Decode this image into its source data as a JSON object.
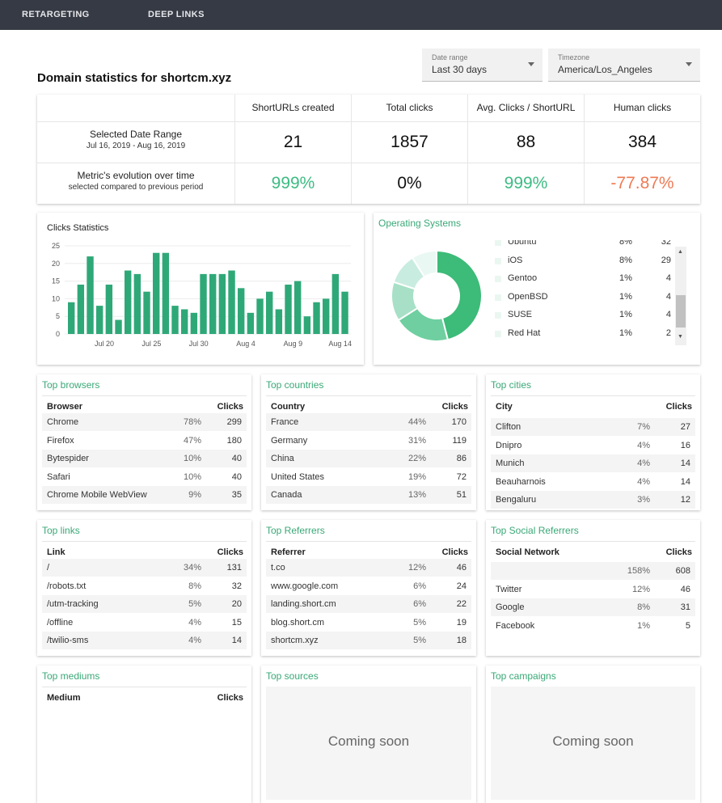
{
  "nav": {
    "retargeting": "RETARGETING",
    "deep_links": "DEEP LINKS"
  },
  "page_title": "Domain statistics for shortcm.xyz",
  "date_range": {
    "label": "Date range",
    "value": "Last 30 days"
  },
  "timezone": {
    "label": "Timezone",
    "value": "America/Los_Angeles"
  },
  "stats": {
    "headers": [
      "ShortURLs created",
      "Total clicks",
      "Avg. Clicks / ShortURL",
      "Human clicks"
    ],
    "selected_label": "Selected Date Range",
    "selected_dates": "Jul 16, 2019 - Aug 16, 2019",
    "values": [
      "21",
      "1857",
      "88",
      "384"
    ],
    "evolution_label": "Metric's evolution over time",
    "evolution_sub": "selected compared to previous period",
    "changes": [
      "999%",
      "0%",
      "999%",
      "-77.87%"
    ]
  },
  "clicks_chart": {
    "title": "Clicks Statistics",
    "chart_data": {
      "type": "bar",
      "ylim": [
        0,
        25
      ],
      "yticks": [
        "0",
        "5",
        "10",
        "15",
        "20",
        "25"
      ],
      "xticks": [
        "Jul 20",
        "Jul 25",
        "Jul 30",
        "Aug 4",
        "Aug 9",
        "Aug 14"
      ],
      "values": [
        9,
        14,
        22,
        8,
        14,
        4,
        18,
        17,
        12,
        23,
        23,
        8,
        7,
        6,
        17,
        17,
        17,
        18,
        13,
        6,
        10,
        12,
        7,
        14,
        15,
        5,
        9,
        10,
        17,
        12
      ],
      "color": "#2fa878"
    }
  },
  "os": {
    "title": "Operating Systems",
    "chart_data": {
      "type": "pie",
      "colors": [
        "#3dbb78",
        "#6fcfa0",
        "#a7e0c6",
        "#c9ece0",
        "#e9f8f2"
      ],
      "values": [
        46,
        20,
        14,
        11,
        9
      ]
    },
    "rows": [
      {
        "name": "Ubuntu",
        "pct": "8%",
        "count": "32"
      },
      {
        "name": "iOS",
        "pct": "8%",
        "count": "29"
      },
      {
        "name": "Gentoo",
        "pct": "1%",
        "count": "4"
      },
      {
        "name": "OpenBSD",
        "pct": "1%",
        "count": "4"
      },
      {
        "name": "SUSE",
        "pct": "1%",
        "count": "4"
      },
      {
        "name": "Red Hat",
        "pct": "1%",
        "count": "2"
      }
    ]
  },
  "browsers": {
    "title": "Top browsers",
    "col1": "Browser",
    "col2": "Clicks",
    "rows": [
      [
        "Chrome",
        "78%",
        "299"
      ],
      [
        "Firefox",
        "47%",
        "180"
      ],
      [
        "Bytespider",
        "10%",
        "40"
      ],
      [
        "Safari",
        "10%",
        "40"
      ],
      [
        "Chrome Mobile WebView",
        "9%",
        "35"
      ]
    ]
  },
  "countries": {
    "title": "Top countries",
    "col1": "Country",
    "col2": "Clicks",
    "rows": [
      [
        "France",
        "44%",
        "170"
      ],
      [
        "Germany",
        "31%",
        "119"
      ],
      [
        "China",
        "22%",
        "86"
      ],
      [
        "United States",
        "19%",
        "72"
      ],
      [
        "Canada",
        "13%",
        "51"
      ]
    ]
  },
  "cities": {
    "title": "Top cities",
    "col1": "City",
    "col2": "Clicks",
    "rows": [
      [
        "Clifton",
        "7%",
        "27"
      ],
      [
        "Dnipro",
        "4%",
        "16"
      ],
      [
        "Munich",
        "4%",
        "14"
      ],
      [
        "Beauharnois",
        "4%",
        "14"
      ],
      [
        "Bengaluru",
        "3%",
        "12"
      ]
    ]
  },
  "links": {
    "title": "Top links",
    "col1": "Link",
    "col2": "Clicks",
    "rows": [
      [
        "/",
        "34%",
        "131"
      ],
      [
        "/robots.txt",
        "8%",
        "32"
      ],
      [
        "/utm-tracking",
        "5%",
        "20"
      ],
      [
        "/offline",
        "4%",
        "15"
      ],
      [
        "/twilio-sms",
        "4%",
        "14"
      ]
    ]
  },
  "referrers": {
    "title": "Top Referrers",
    "col1": "Referrer",
    "col2": "Clicks",
    "rows": [
      [
        "t.co",
        "12%",
        "46"
      ],
      [
        "www.google.com",
        "6%",
        "24"
      ],
      [
        "landing.short.cm",
        "6%",
        "22"
      ],
      [
        "blog.short.cm",
        "5%",
        "19"
      ],
      [
        "shortcm.xyz",
        "5%",
        "18"
      ]
    ]
  },
  "social": {
    "title": "Top Social Referrers",
    "col1": "Social Network",
    "col2": "Clicks",
    "rows": [
      [
        "",
        "158%",
        "608"
      ],
      [
        "Twitter",
        "12%",
        "46"
      ],
      [
        "Google",
        "8%",
        "31"
      ],
      [
        "Facebook",
        "1%",
        "5"
      ]
    ]
  },
  "mediums": {
    "title": "Top mediums",
    "col1": "Medium",
    "col2": "Clicks"
  },
  "sources": {
    "title": "Top sources",
    "soon": "Coming soon"
  },
  "campaigns": {
    "title": "Top campaigns",
    "soon": "Coming soon"
  }
}
